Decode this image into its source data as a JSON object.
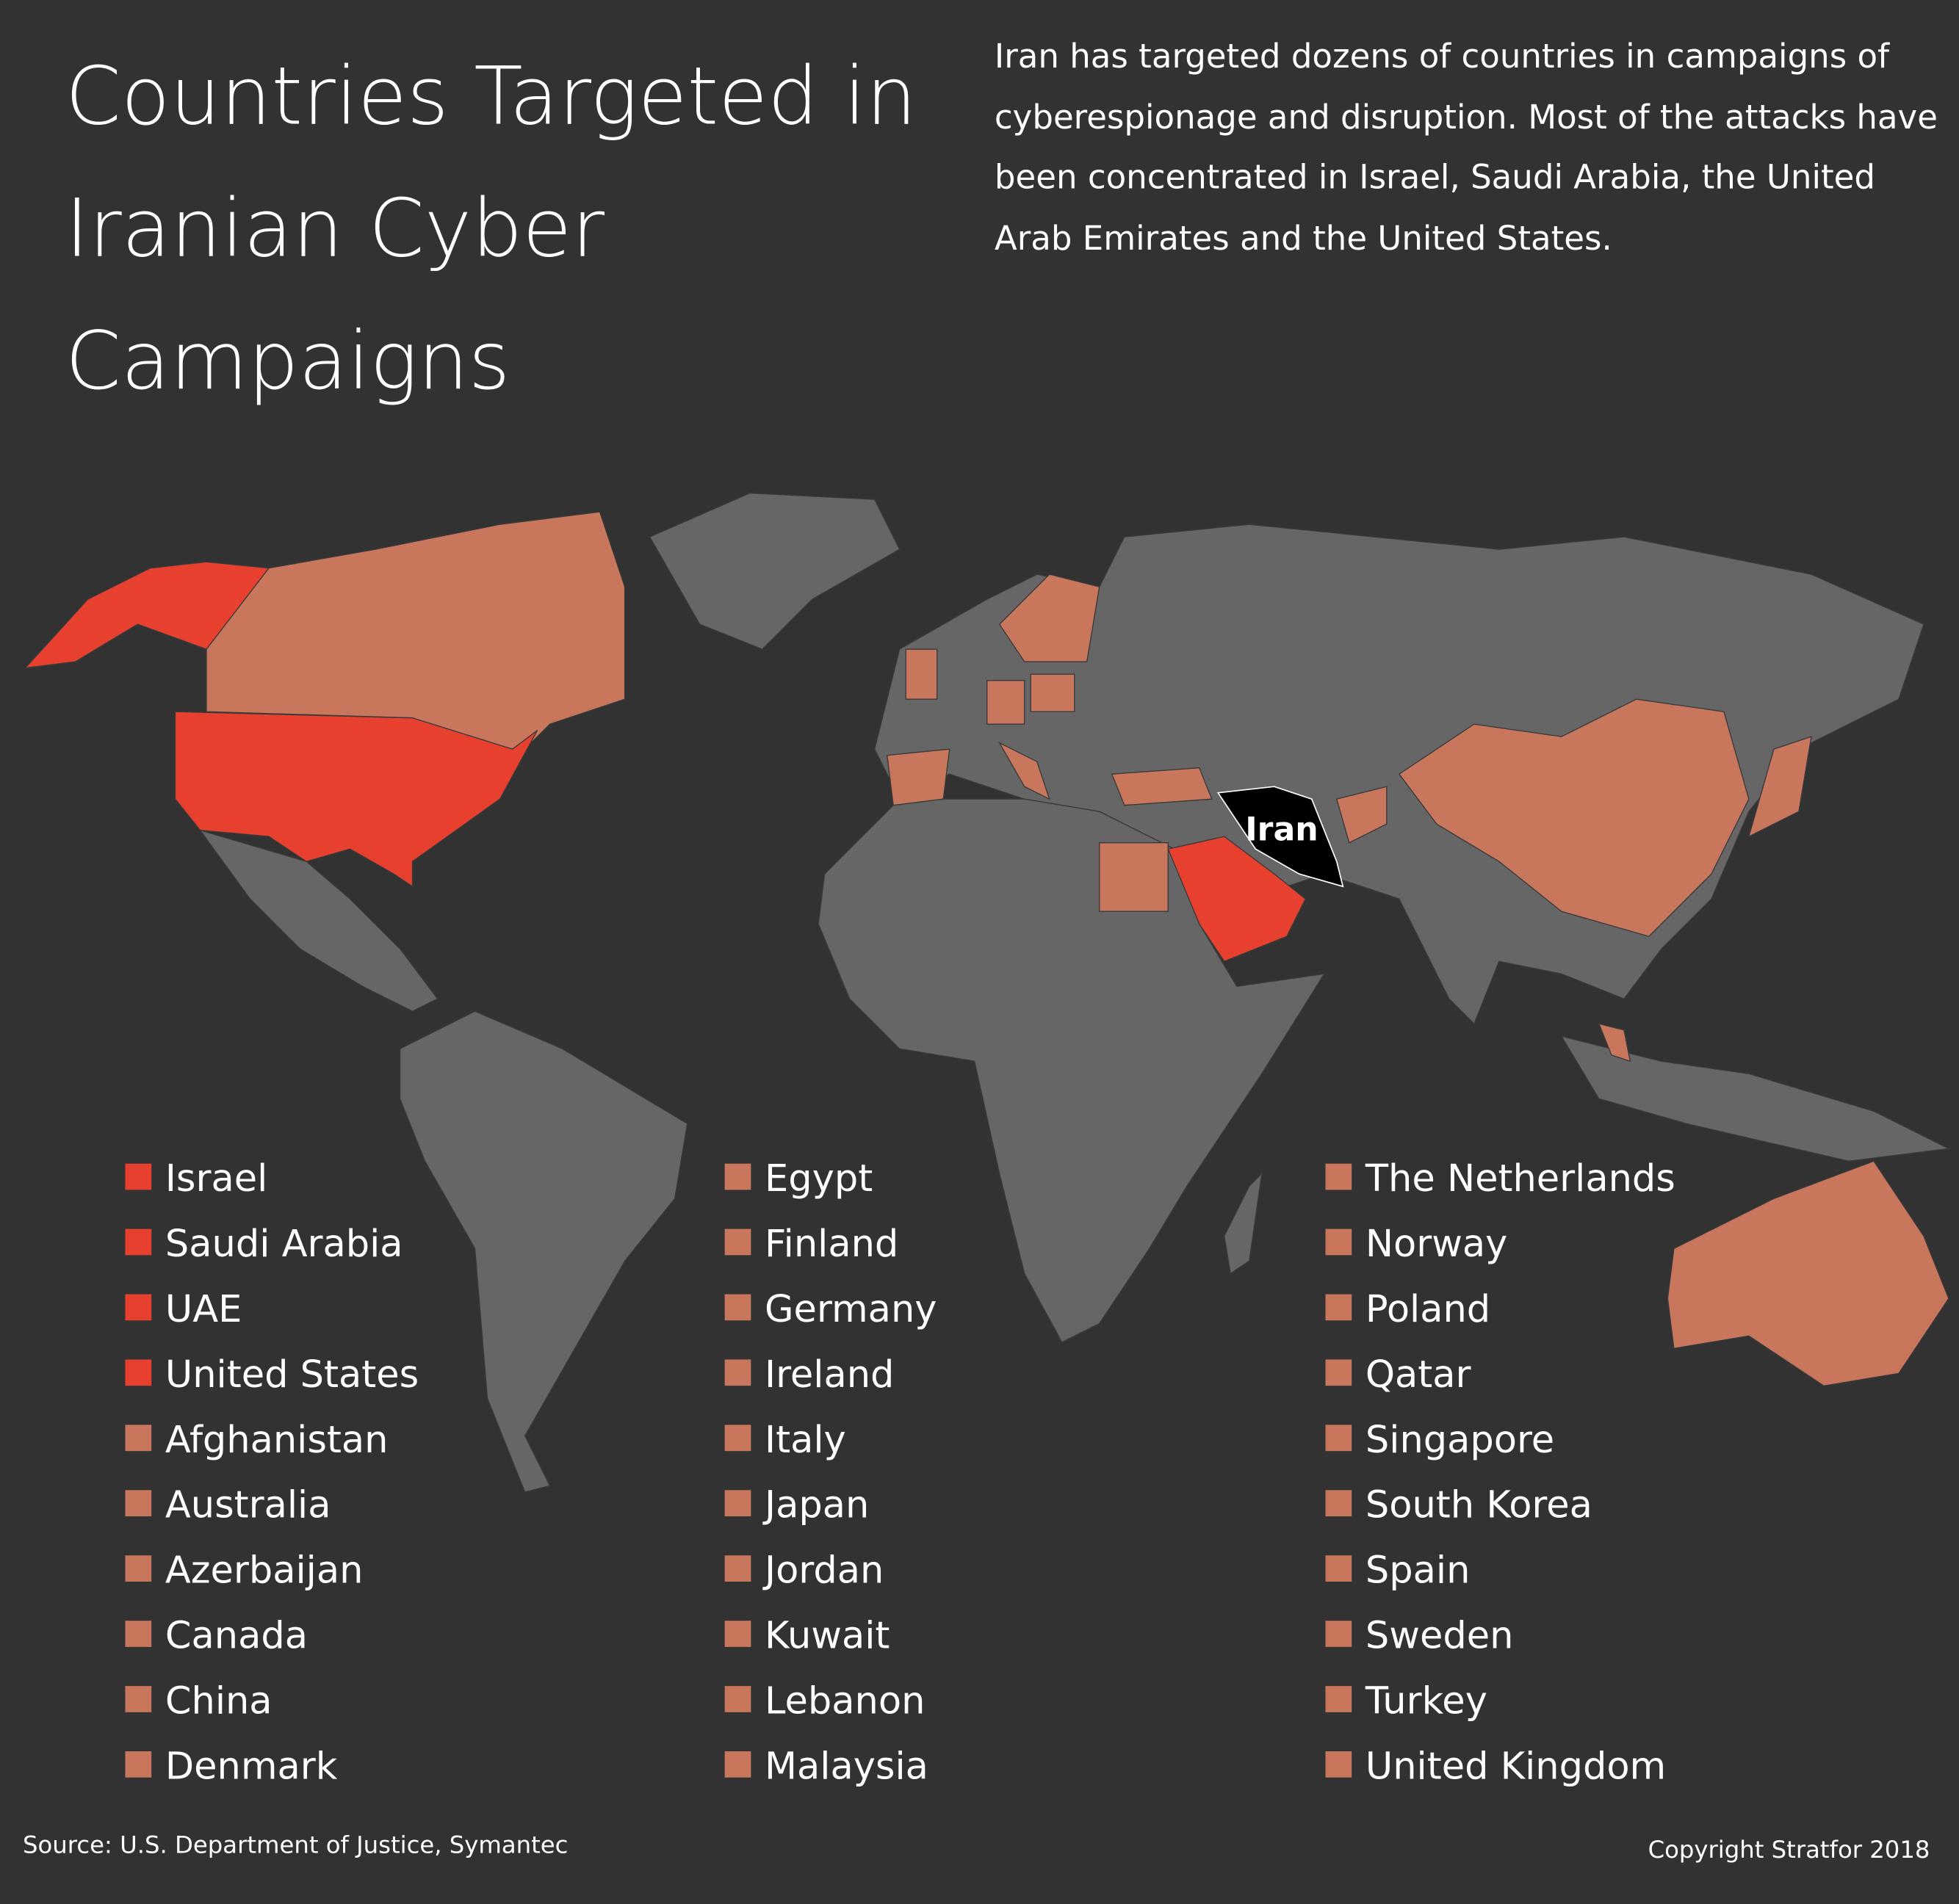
{
  "title": "Countries Targeted in Iranian Cyber Campaigns",
  "description": "Iran has targeted dozens of countries in campaigns of cyberespionage and disruption. Most of the attacks have been concentrated in Israel, Saudi Arabia, the United Arab Emirates and the United States.",
  "map": {
    "label": "Iran"
  },
  "legend": {
    "primary": {
      "color": "#e8402f",
      "items": [
        "Israel",
        "Saudi Arabia",
        "UAE",
        "United States"
      ]
    },
    "secondary": {
      "color": "#c8775c",
      "items": [
        "Afghanistan",
        "Australia",
        "Azerbaijan",
        "Canada",
        "China",
        "Denmark",
        "Egypt",
        "Finland",
        "Germany",
        "Ireland",
        "Italy",
        "Japan",
        "Jordan",
        "Kuwait",
        "Lebanon",
        "Malaysia",
        "The Netherlands",
        "Norway",
        "Poland",
        "Qatar",
        "Singapore",
        "South Korea",
        "Spain",
        "Sweden",
        "Turkey",
        "United Kingdom"
      ]
    }
  },
  "source": "Source: U.S. Department of Justice, Symantec",
  "copyright": "Copyright Stratfor 2018"
}
